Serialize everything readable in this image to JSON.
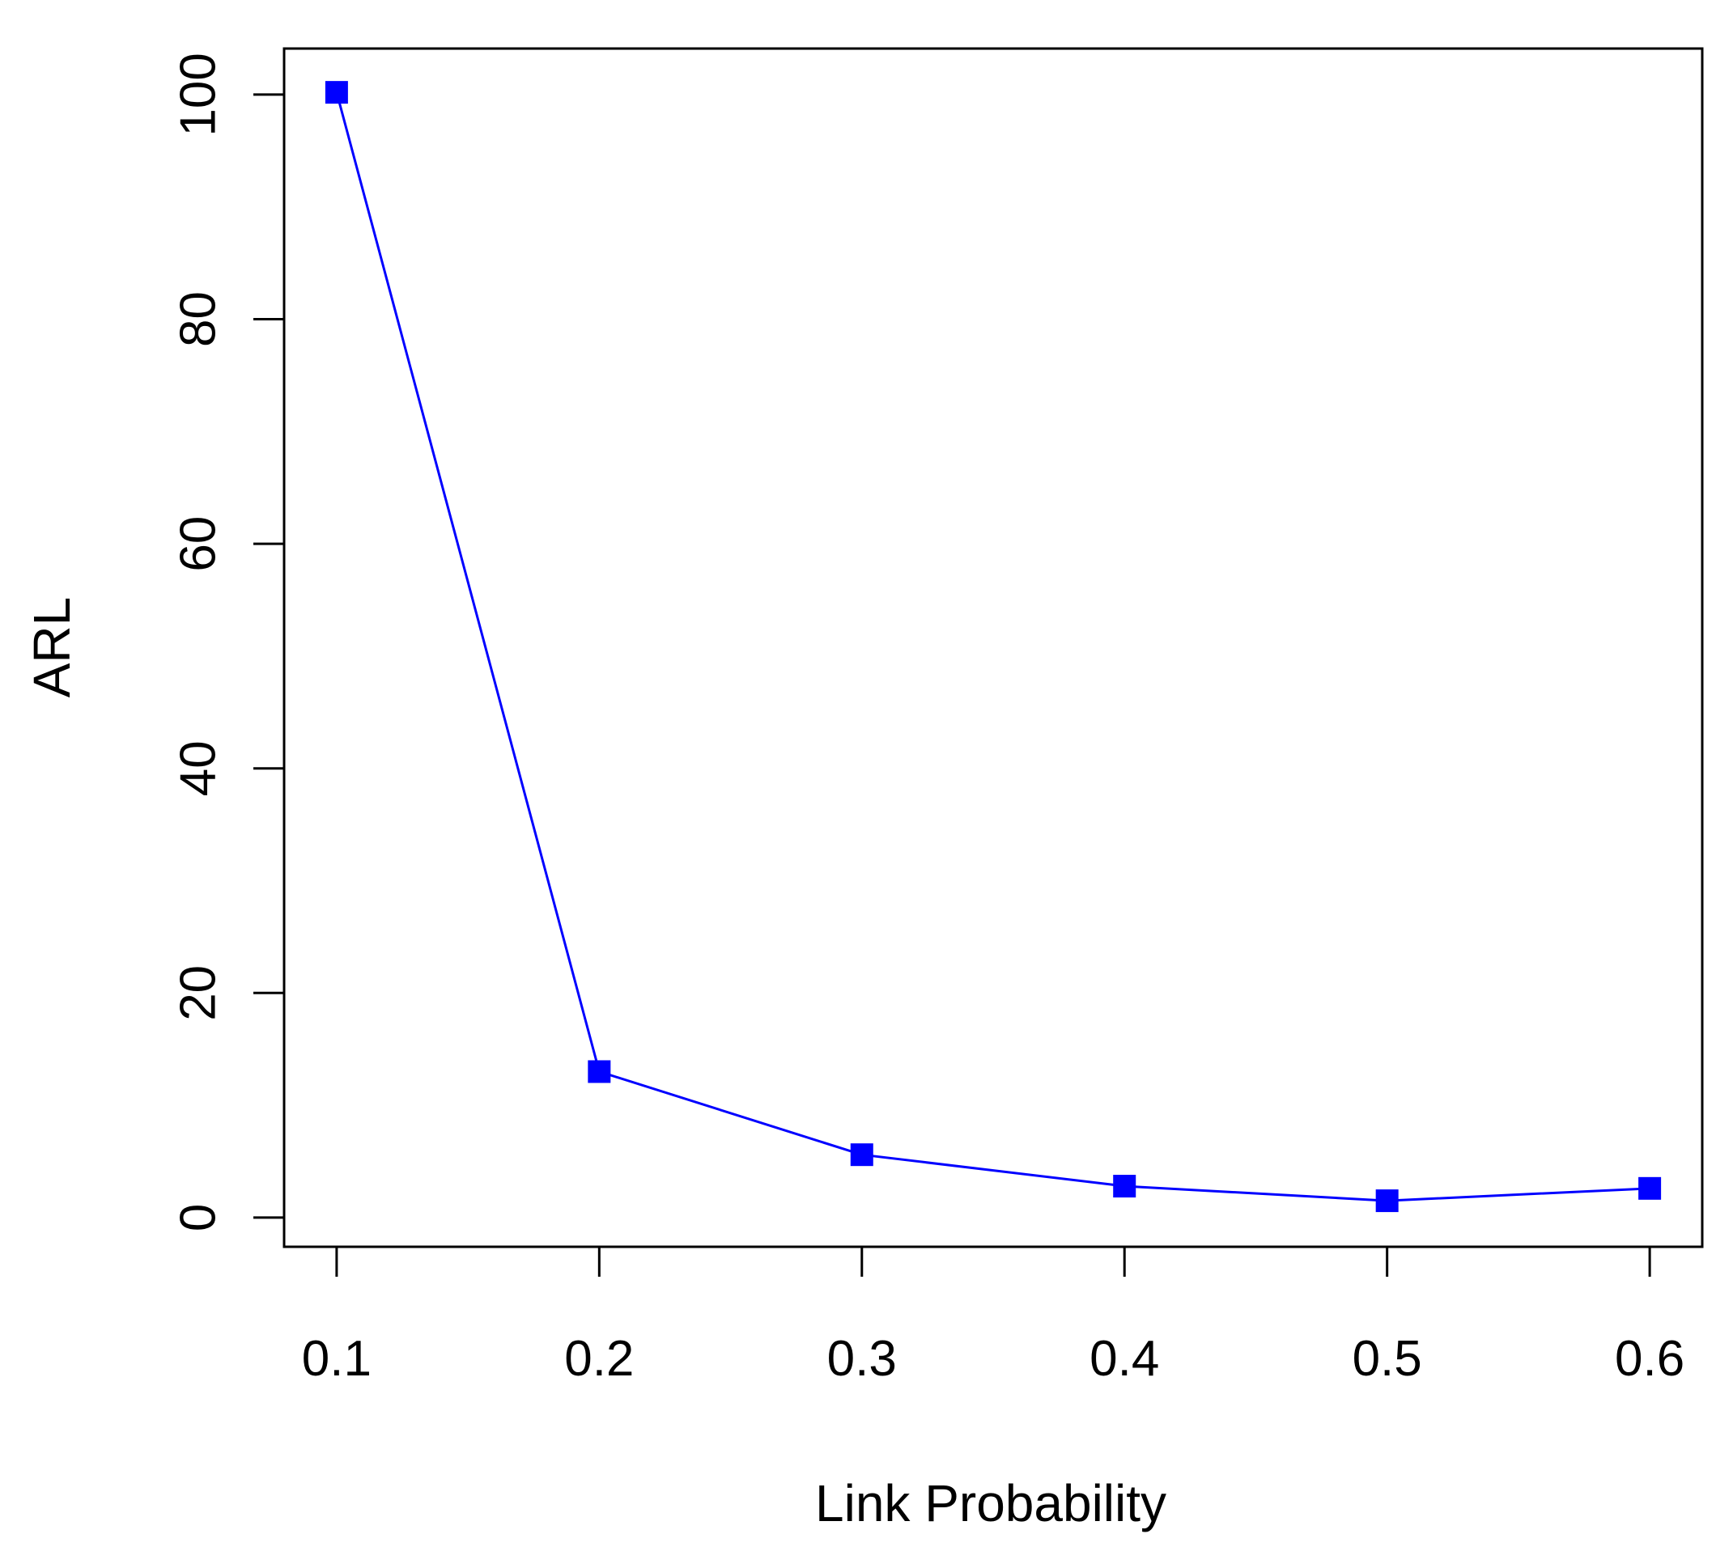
{
  "chart_data": {
    "type": "line",
    "title": "",
    "xlabel": "Link Probability",
    "ylabel": "ARL",
    "x": [
      0.1,
      0.2,
      0.3,
      0.4,
      0.5,
      0.6
    ],
    "x_tick_labels": [
      "0.1",
      "0.2",
      "0.3",
      "0.4",
      "0.5",
      "0.6"
    ],
    "y_ticks": [
      0,
      20,
      40,
      60,
      80,
      100
    ],
    "y_tick_labels": [
      "0",
      "20",
      "40",
      "60",
      "80",
      "100"
    ],
    "series": [
      {
        "values": [
          100.2,
          13.0,
          5.6,
          2.8,
          1.5,
          2.6
        ],
        "color": "#0000ff",
        "marker": "square"
      }
    ],
    "xlim": [
      0.08,
      0.62
    ],
    "ylim": [
      -2.6,
      104.1
    ],
    "grid": false,
    "legend": "none",
    "colors": {
      "series": "#0000ff",
      "axis": "#000000",
      "background": "#ffffff"
    }
  }
}
